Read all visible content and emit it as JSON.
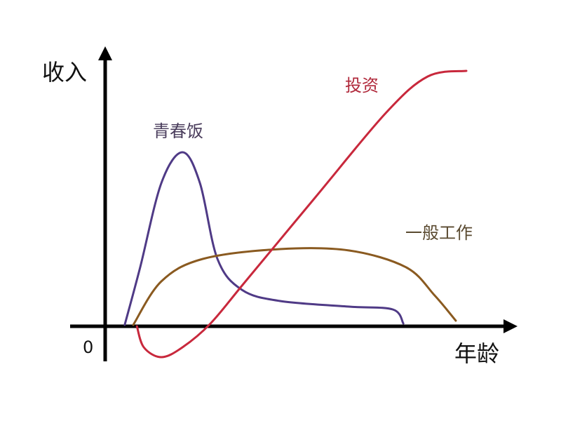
{
  "chart_data": {
    "type": "line",
    "title": "",
    "xlabel": "年龄",
    "ylabel": "收入",
    "origin_label": "0",
    "xlim": [
      0,
      100
    ],
    "ylim": [
      -15,
      100
    ],
    "grid": false,
    "legend": "none (series labelled inline)",
    "series": [
      {
        "name": "青春饭",
        "color": "#4f3a86",
        "label_color": "#4a3d5c",
        "points": [
          [
            4.8,
            0.5
          ],
          [
            8.6,
            21
          ],
          [
            13.8,
            51
          ],
          [
            19,
            62
          ],
          [
            23.3,
            51
          ],
          [
            27.6,
            24
          ],
          [
            33.6,
            13
          ],
          [
            43,
            9
          ],
          [
            60,
            7
          ],
          [
            70.7,
            6
          ],
          [
            73.3,
            1
          ]
        ]
      },
      {
        "name": "一般工作",
        "color": "#8a5a20",
        "label_color": "#5a4a30",
        "points": [
          [
            6.9,
            0.5
          ],
          [
            13.8,
            16
          ],
          [
            24,
            24
          ],
          [
            43,
            27.5
          ],
          [
            60,
            27
          ],
          [
            74,
            21
          ],
          [
            81,
            11
          ],
          [
            86.2,
            2
          ]
        ]
      },
      {
        "name": "投资",
        "color": "#c8283c",
        "label_color": "#b0283a",
        "points": [
          [
            7.8,
            0
          ],
          [
            9.5,
            -7.5
          ],
          [
            13.8,
            -11
          ],
          [
            19,
            -7.5
          ],
          [
            25.9,
            1
          ],
          [
            34.5,
            16
          ],
          [
            51.7,
            46
          ],
          [
            69,
            76
          ],
          [
            79.3,
            89
          ],
          [
            88.8,
            91
          ]
        ]
      }
    ]
  }
}
